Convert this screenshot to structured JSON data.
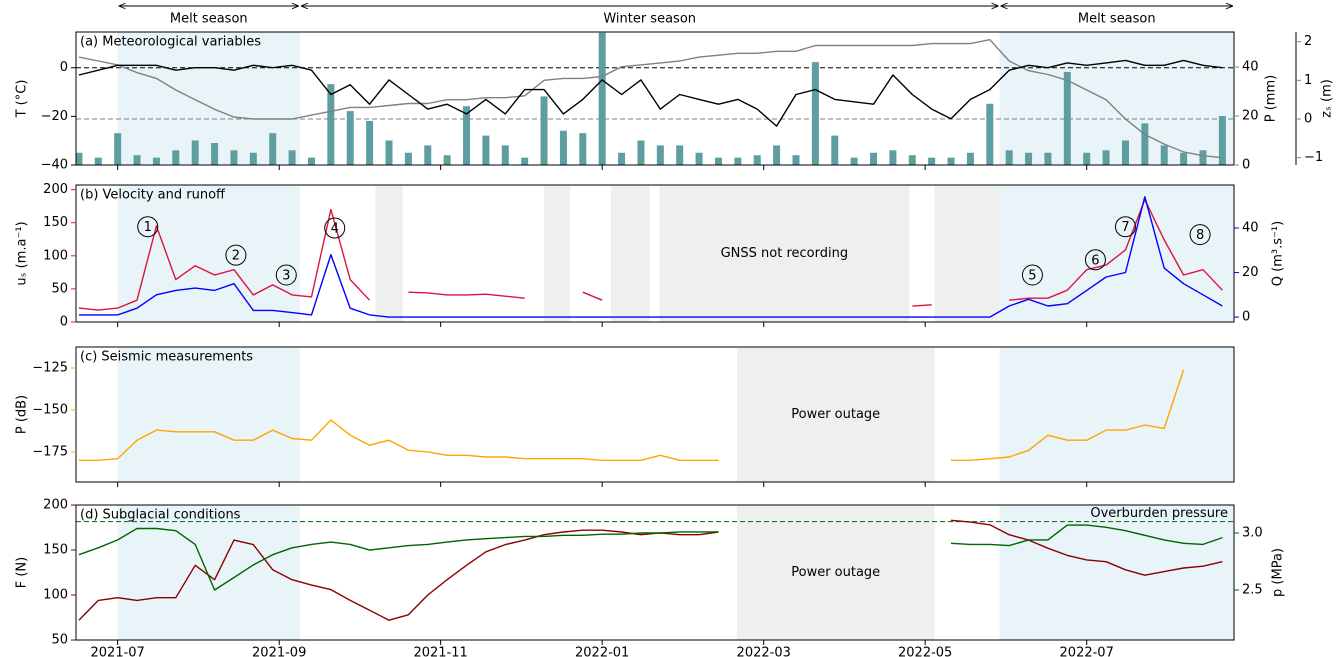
{
  "chart_data": {
    "type": "panels",
    "x": [
      2021.46,
      2021.48,
      2021.5,
      2021.52,
      2021.54,
      2021.56,
      2021.58,
      2021.6,
      2021.62,
      2021.64,
      2021.66,
      2021.68,
      2021.7,
      2021.72,
      2021.74,
      2021.76,
      2021.78,
      2021.8,
      2021.82,
      2021.84,
      2021.86,
      2021.88,
      2021.9,
      2021.92,
      2021.94,
      2021.96,
      2021.98,
      2022.0,
      2022.02,
      2022.04,
      2022.06,
      2022.08,
      2022.1,
      2022.12,
      2022.14,
      2022.16,
      2022.18,
      2022.2,
      2022.22,
      2022.24,
      2022.26,
      2022.28,
      2022.3,
      2022.32,
      2022.34,
      2022.36,
      2022.38,
      2022.4,
      2022.42,
      2022.44,
      2022.46,
      2022.48,
      2022.5,
      2022.52,
      2022.54,
      2022.56,
      2022.58,
      2022.6,
      2022.62,
      2022.64
    ],
    "xlim": [
      2021.457,
      2022.652
    ],
    "xticks": [
      {
        "value": 2021.5,
        "label": "2021-07"
      },
      {
        "value": 2021.6667,
        "label": "2021-09"
      },
      {
        "value": 2021.8333,
        "label": "2021-11"
      },
      {
        "value": 2022.0,
        "label": "2022-01"
      },
      {
        "value": 2022.1667,
        "label": "2022-03"
      },
      {
        "value": 2022.3333,
        "label": "2022-05"
      },
      {
        "value": 2022.5,
        "label": "2022-07"
      }
    ],
    "seasons": [
      {
        "label": "Melt season",
        "xlim": [
          2021.5,
          2021.688
        ],
        "color": "#e9f4f8"
      },
      {
        "label": "Winter season",
        "xlim": [
          2021.688,
          2022.41
        ]
      },
      {
        "label": "Melt season",
        "xlim": [
          2022.41,
          2022.652
        ],
        "color": "#e9f4f8"
      }
    ],
    "panels": [
      {
        "title": "(a) Meteorological variables",
        "ylabel": "T (°C)",
        "ycolor": "#000000",
        "ylim": [
          -40,
          14.7
        ],
        "yticks": [
          {
            "value": -40,
            "label": "−40"
          },
          {
            "value": -20,
            "label": "−20"
          },
          0
        ],
        "y2label": "P (mm)",
        "y2color": "#5f9ea0",
        "y2lim": [
          0,
          54.3
        ],
        "y2ticks": [
          0,
          20,
          40
        ],
        "y3label": "zₛ (m)",
        "y3color": "#808080",
        "y3lim": [
          -1.19,
          2.25
        ],
        "y3ticks": [
          {
            "value": -1,
            "label": "−1"
          },
          0,
          1,
          2
        ],
        "hlines": [
          {
            "value": 0,
            "axis": "y",
            "color": "#000000"
          },
          {
            "value": 0,
            "axis": "y3",
            "color": "#808080"
          }
        ],
        "series": [
          {
            "type": "bar",
            "axis": "y2",
            "color": "#5f9ea0",
            "values": [
              5,
              3,
              13,
              4,
              3,
              6,
              10,
              9,
              6,
              5,
              13,
              6,
              3,
              33,
              22,
              18,
              10,
              5,
              8,
              4,
              24,
              12,
              8,
              3,
              28,
              14,
              13,
              54,
              5,
              10,
              8,
              8,
              5,
              3,
              3,
              4,
              8,
              4,
              42,
              12,
              3,
              5,
              6,
              4,
              3,
              3,
              5,
              25,
              6,
              5,
              5,
              38,
              5,
              6,
              10,
              17,
              8,
              5,
              6,
              20
            ]
          },
          {
            "type": "line",
            "axis": "y3",
            "color": "#808080",
            "values": [
              1.6,
              1.5,
              1.4,
              1.2,
              1.05,
              0.75,
              0.5,
              0.25,
              0.05,
              0,
              0,
              0,
              0.1,
              0.2,
              0.3,
              0.3,
              0.35,
              0.4,
              0.4,
              0.5,
              0.5,
              0.55,
              0.55,
              0.6,
              1.0,
              1.05,
              1.05,
              1.1,
              1.35,
              1.4,
              1.45,
              1.5,
              1.6,
              1.65,
              1.7,
              1.7,
              1.75,
              1.75,
              1.9,
              1.9,
              1.9,
              1.9,
              1.9,
              1.9,
              1.95,
              1.95,
              1.95,
              2.05,
              1.5,
              1.25,
              1.15,
              1.0,
              0.75,
              0.5,
              0,
              -0.4,
              -0.65,
              -0.85,
              -0.95,
              -1.0
            ]
          },
          {
            "type": "line",
            "axis": "y",
            "color": "#000000",
            "values": [
              -3,
              -1,
              1,
              1,
              1,
              -1,
              0,
              0,
              -1,
              1,
              0,
              1,
              -1,
              -11,
              -7,
              -15,
              -5,
              -11,
              -17,
              -15,
              -19,
              -13,
              -19,
              -9,
              -9,
              -19,
              -13,
              -5,
              -11,
              -5,
              -17,
              -11,
              -13,
              -15,
              -13,
              -17,
              -24,
              -11,
              -9,
              -13,
              -14,
              -15,
              -3,
              -11,
              -17,
              -21,
              -13,
              -9,
              -1,
              1,
              0,
              2,
              1,
              2,
              3,
              1,
              1,
              3,
              1,
              0
            ]
          }
        ]
      },
      {
        "title": "(b) Velocity and runoff",
        "ylabel": "uₛ (m.a⁻¹)",
        "ycolor": "#dc143c",
        "ylim": [
          0,
          207
        ],
        "yticks": [
          0,
          50,
          100,
          150,
          200
        ],
        "y2label": "Q (m³.s⁻¹)",
        "y2color": "#0000ff",
        "y2lim": [
          -2.2,
          59.3
        ],
        "y2ticks": [
          0,
          20,
          40
        ],
        "gaps": [
          [
            2021.766,
            2021.794
          ],
          [
            2021.94,
            2021.967
          ],
          [
            2022.009,
            2022.049
          ],
          [
            2022.059,
            2022.317
          ],
          [
            2022.343,
            2022.41
          ]
        ],
        "gap_label": "GNSS not recording",
        "annotations": [
          {
            "text": "1",
            "x": 2021.531,
            "y": 144
          },
          {
            "text": "2",
            "x": 2021.622,
            "y": 101
          },
          {
            "text": "3",
            "x": 2021.674,
            "y": 71
          },
          {
            "text": "4",
            "x": 2021.724,
            "y": 142
          },
          {
            "text": "5",
            "x": 2022.444,
            "y": 71
          },
          {
            "text": "6",
            "x": 2022.509,
            "y": 94
          },
          {
            "text": "7",
            "x": 2022.54,
            "y": 144
          },
          {
            "text": "8",
            "x": 2022.617,
            "y": 132
          }
        ],
        "series": [
          {
            "type": "line",
            "axis": "y",
            "color": "#dc143c",
            "values": [
              21,
              18,
              21,
              33,
              145,
              64,
              85,
              71,
              79,
              41,
              56,
              41,
              38,
              170,
              64,
              33,
              null,
              45,
              44,
              41,
              41,
              42,
              39,
              36,
              null,
              null,
              45,
              33,
              null,
              null,
              null,
              null,
              null,
              null,
              null,
              null,
              null,
              null,
              null,
              null,
              null,
              null,
              null,
              24,
              26,
              null,
              null,
              null,
              33,
              36,
              36,
              48,
              79,
              86,
              109,
              185,
              124,
              71,
              79,
              48
            ]
          },
          {
            "type": "line",
            "axis": "y2",
            "color": "#0000ff",
            "values": [
              1,
              1,
              1,
              4,
              10,
              12,
              13,
              12,
              15,
              3,
              3,
              2,
              1,
              28,
              4,
              1,
              0,
              0,
              0,
              0,
              0,
              0,
              0,
              0,
              0,
              0,
              0,
              0,
              0,
              0,
              0,
              0,
              0,
              0,
              0,
              0,
              0,
              0,
              0,
              0,
              0,
              0,
              0,
              0,
              0,
              0,
              0,
              0,
              5,
              8,
              5,
              6,
              12,
              18,
              20,
              54,
              22,
              15,
              10,
              5
            ]
          }
        ]
      },
      {
        "title": "(c) Seismic measurements",
        "ylabel": "P (dB)",
        "ycolor": "#ffa500",
        "ylim": [
          -192.9,
          -112.5
        ],
        "yticks": [
          {
            "value": -175,
            "label": "−175"
          },
          {
            "value": -150,
            "label": "−150"
          },
          {
            "value": -125,
            "label": "−125"
          }
        ],
        "gaps": [
          [
            2022.139,
            2022.343
          ]
        ],
        "gap_label": "Power outage",
        "series": [
          {
            "type": "line",
            "axis": "y",
            "color": "#ffa500",
            "values": [
              -180,
              -180,
              -179,
              -168,
              -162,
              -163,
              -163,
              -163,
              -168,
              -168,
              -162,
              -167,
              -168,
              -156,
              -165,
              -171,
              -168,
              -174,
              -175,
              -177,
              -177,
              -178,
              -178,
              -179,
              -179,
              -179,
              -179,
              -180,
              -180,
              -180,
              -177,
              -180,
              -180,
              -180,
              null,
              null,
              null,
              null,
              null,
              null,
              null,
              null,
              null,
              null,
              null,
              -180,
              -180,
              -179,
              -178,
              -174,
              -165,
              -168,
              -168,
              -162,
              -162,
              -159,
              -161,
              -126,
              null,
              null
            ]
          }
        ]
      },
      {
        "title": "(d) Subglacial conditions",
        "ylabel": "F (N)",
        "ycolor": "#8b0000",
        "ylim": [
          50,
          200
        ],
        "yticks": [
          50,
          100,
          150,
          200
        ],
        "y2label": "p (MPa)",
        "y2color": "#006400",
        "y2lim": [
          2.061,
          3.246
        ],
        "y2ticks": [
          2.5,
          {
            "value": 3,
            "label": "3.0"
          }
        ],
        "gaps": [
          [
            2022.139,
            2022.343
          ]
        ],
        "gap_label": "Power outage",
        "hlines": [
          {
            "value": 3.1,
            "axis": "y2",
            "color": "#006400",
            "label": "Overburden pressure"
          }
        ],
        "series": [
          {
            "type": "line",
            "axis": "y",
            "color": "#8b0000",
            "values": [
              72,
              94,
              97,
              94,
              97,
              97,
              133,
              117,
              161,
              156,
              128,
              117,
              111,
              106,
              94,
              83,
              72,
              78,
              100,
              117,
              133,
              148,
              156,
              161,
              167,
              170,
              172,
              172,
              170,
              167,
              169,
              167,
              167,
              170,
              null,
              null,
              null,
              null,
              null,
              null,
              null,
              null,
              null,
              null,
              null,
              183,
              181,
              178,
              167,
              161,
              152,
              144,
              139,
              137,
              128,
              122,
              126,
              130,
              132,
              137
            ]
          },
          {
            "type": "line",
            "axis": "y2",
            "color": "#006400",
            "values": [
              2.81,
              2.87,
              2.94,
              3.04,
              3.04,
              3.02,
              2.9,
              2.5,
              2.61,
              2.72,
              2.81,
              2.87,
              2.9,
              2.92,
              2.9,
              2.85,
              2.87,
              2.89,
              2.9,
              2.92,
              2.94,
              2.95,
              2.96,
              2.97,
              2.97,
              2.98,
              2.98,
              2.99,
              2.99,
              3.0,
              3.0,
              3.01,
              3.01,
              3.01,
              null,
              null,
              null,
              null,
              null,
              null,
              null,
              null,
              null,
              null,
              null,
              2.91,
              2.9,
              2.9,
              2.89,
              2.94,
              2.94,
              3.07,
              3.07,
              3.05,
              3.02,
              2.98,
              2.94,
              2.91,
              2.9,
              2.96
            ]
          }
        ]
      }
    ]
  }
}
